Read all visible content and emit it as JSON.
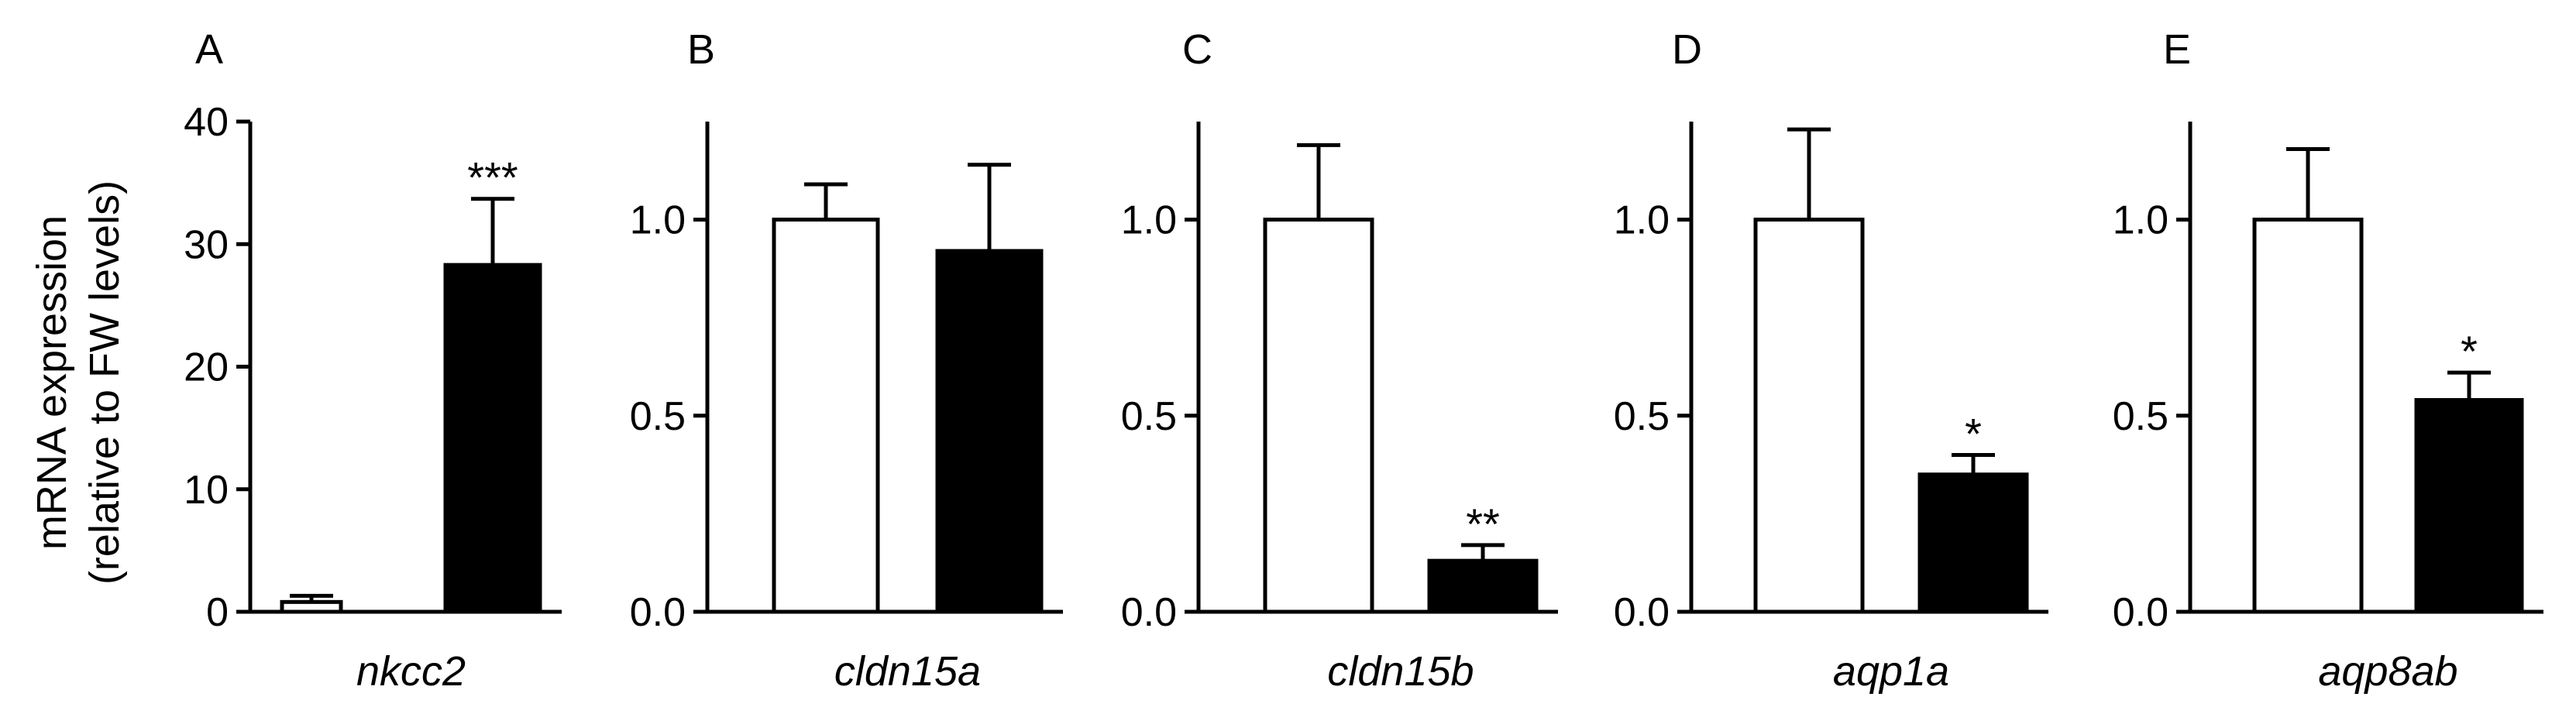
{
  "figure": {
    "ylabel_line1": "mRNA expression",
    "ylabel_line2": "(relative to FW levels)"
  },
  "colors": {
    "control": "#ffffff",
    "treatment": "#000000",
    "stroke": "#000000"
  },
  "chart_data": [
    {
      "type": "bar",
      "panel": "A",
      "xlabel": "nkcc2",
      "ylim": [
        0,
        40
      ],
      "yticks": [
        "0",
        "10",
        "20",
        "30",
        "40"
      ],
      "grid": false,
      "series": [
        {
          "values": [
            0.8
          ],
          "error": [
            0.5
          ],
          "color": "#ffffff"
        },
        {
          "values": [
            28.3
          ],
          "error": [
            5.4
          ],
          "color": "#000000",
          "significance": "***"
        }
      ]
    },
    {
      "type": "bar",
      "panel": "B",
      "xlabel": "cldn15a",
      "ylim": [
        0,
        1.25
      ],
      "yticks": [
        "0.0",
        "0.5",
        "1.0"
      ],
      "grid": false,
      "series": [
        {
          "values": [
            1.0
          ],
          "error": [
            0.09
          ],
          "color": "#ffffff"
        },
        {
          "values": [
            0.92
          ],
          "error": [
            0.22
          ],
          "color": "#000000",
          "significance": ""
        }
      ]
    },
    {
      "type": "bar",
      "panel": "C",
      "xlabel": "cldn15b",
      "ylim": [
        0,
        1.25
      ],
      "yticks": [
        "0.0",
        "0.5",
        "1.0"
      ],
      "grid": false,
      "series": [
        {
          "values": [
            1.0
          ],
          "error": [
            0.19
          ],
          "color": "#ffffff"
        },
        {
          "values": [
            0.13
          ],
          "error": [
            0.04
          ],
          "color": "#000000",
          "significance": "**"
        }
      ]
    },
    {
      "type": "bar",
      "panel": "D",
      "xlabel": "aqp1a",
      "ylim": [
        0,
        1.25
      ],
      "yticks": [
        "0.0",
        "0.5",
        "1.0"
      ],
      "grid": false,
      "series": [
        {
          "values": [
            1.0
          ],
          "error": [
            0.23
          ],
          "color": "#ffffff"
        },
        {
          "values": [
            0.35
          ],
          "error": [
            0.05
          ],
          "color": "#000000",
          "significance": "*"
        }
      ]
    },
    {
      "type": "bar",
      "panel": "E",
      "xlabel": "aqp8ab",
      "ylim": [
        0,
        1.25
      ],
      "yticks": [
        "0.0",
        "0.5",
        "1.0"
      ],
      "grid": false,
      "series": [
        {
          "values": [
            1.0
          ],
          "error": [
            0.18
          ],
          "color": "#ffffff"
        },
        {
          "values": [
            0.54
          ],
          "error": [
            0.07
          ],
          "color": "#000000",
          "significance": "*"
        }
      ]
    }
  ]
}
